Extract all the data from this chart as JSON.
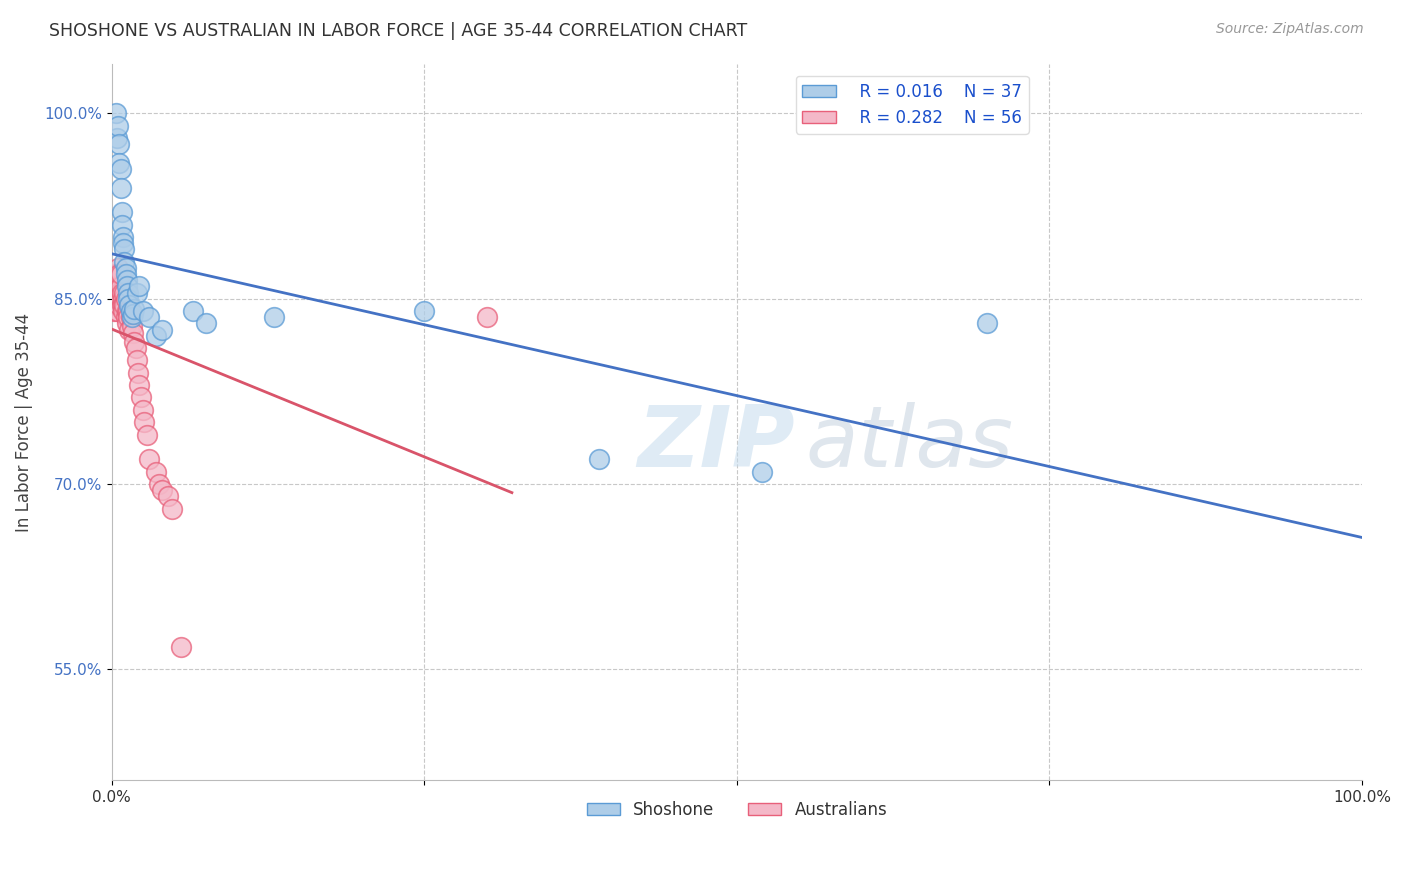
{
  "title": "SHOSHONE VS AUSTRALIAN IN LABOR FORCE | AGE 35-44 CORRELATION CHART",
  "source_text": "Source: ZipAtlas.com",
  "ylabel": "In Labor Force | Age 35-44",
  "xlim": [
    0.0,
    1.0
  ],
  "ylim": [
    0.46,
    1.04
  ],
  "yticks": [
    0.55,
    0.7,
    0.85,
    1.0
  ],
  "ytick_labels": [
    "55.0%",
    "70.0%",
    "85.0%",
    "100.0%"
  ],
  "legend_r1": "R = 0.016",
  "legend_n1": "N = 37",
  "legend_r2": "R = 0.282",
  "legend_n2": "N = 56",
  "shoshone_color": "#aecde8",
  "australian_color": "#f4b8c8",
  "shoshone_edge_color": "#5b9bd5",
  "australian_edge_color": "#e8607a",
  "shoshone_line_color": "#4472c4",
  "australian_line_color": "#d9546a",
  "watermark_zip": "ZIP",
  "watermark_atlas": "atlas",
  "shoshone_x": [
    0.003,
    0.004,
    0.005,
    0.006,
    0.006,
    0.007,
    0.007,
    0.008,
    0.008,
    0.009,
    0.009,
    0.01,
    0.01,
    0.011,
    0.011,
    0.012,
    0.012,
    0.013,
    0.013,
    0.014,
    0.015,
    0.016,
    0.017,
    0.018,
    0.02,
    0.022,
    0.025,
    0.03,
    0.035,
    0.04,
    0.065,
    0.075,
    0.13,
    0.25,
    0.39,
    0.52,
    0.7
  ],
  "shoshone_y": [
    1.0,
    0.98,
    0.99,
    0.975,
    0.96,
    0.955,
    0.94,
    0.92,
    0.91,
    0.9,
    0.895,
    0.89,
    0.88,
    0.875,
    0.87,
    0.865,
    0.86,
    0.855,
    0.85,
    0.845,
    0.84,
    0.835,
    0.838,
    0.842,
    0.855,
    0.86,
    0.84,
    0.835,
    0.82,
    0.825,
    0.84,
    0.83,
    0.835,
    0.84,
    0.72,
    0.71,
    0.83
  ],
  "australian_x": [
    0.002,
    0.002,
    0.003,
    0.003,
    0.003,
    0.003,
    0.004,
    0.004,
    0.004,
    0.004,
    0.005,
    0.005,
    0.005,
    0.005,
    0.006,
    0.006,
    0.006,
    0.006,
    0.007,
    0.007,
    0.007,
    0.007,
    0.008,
    0.008,
    0.009,
    0.009,
    0.009,
    0.01,
    0.01,
    0.011,
    0.011,
    0.012,
    0.012,
    0.013,
    0.013,
    0.014,
    0.015,
    0.016,
    0.017,
    0.018,
    0.019,
    0.02,
    0.021,
    0.022,
    0.023,
    0.025,
    0.026,
    0.028,
    0.03,
    0.035,
    0.038,
    0.04,
    0.045,
    0.048,
    0.055,
    0.3
  ],
  "australian_y": [
    0.84,
    0.86,
    0.845,
    0.865,
    0.855,
    0.87,
    0.85,
    0.84,
    0.86,
    0.87,
    0.855,
    0.87,
    0.86,
    0.875,
    0.86,
    0.87,
    0.855,
    0.845,
    0.855,
    0.85,
    0.86,
    0.87,
    0.845,
    0.855,
    0.85,
    0.845,
    0.84,
    0.855,
    0.845,
    0.835,
    0.85,
    0.84,
    0.83,
    0.84,
    0.835,
    0.825,
    0.835,
    0.828,
    0.822,
    0.815,
    0.81,
    0.8,
    0.79,
    0.78,
    0.77,
    0.76,
    0.75,
    0.74,
    0.72,
    0.71,
    0.7,
    0.695,
    0.69,
    0.68,
    0.568,
    0.835
  ]
}
